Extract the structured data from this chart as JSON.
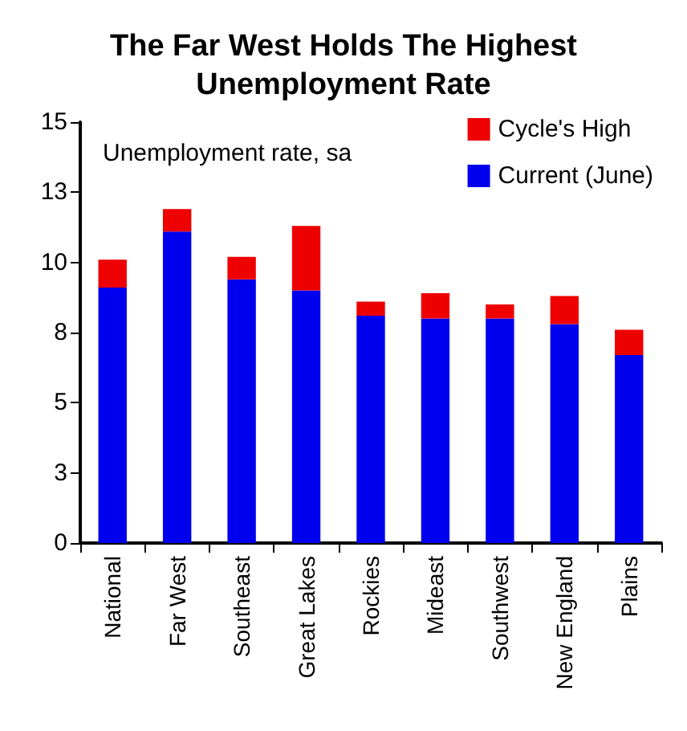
{
  "chart_data": {
    "type": "bar",
    "title": "The Far West Holds The Highest\nUnemployment Rate",
    "annotations": [
      "Unemployment rate, sa"
    ],
    "stacked": true,
    "categories": [
      "National",
      "Far West",
      "Southeast",
      "Great Lakes",
      "Rockies",
      "Mideast",
      "Southwest",
      "New England",
      "Plains"
    ],
    "series": [
      {
        "name": "Current (June)",
        "color": "#0000ee",
        "values": [
          9.1,
          11.1,
          9.4,
          9.0,
          8.1,
          8.0,
          8.0,
          7.8,
          6.7
        ]
      },
      {
        "name": "Cycle's High",
        "color": "#ee0000",
        "values": [
          1.0,
          0.8,
          0.8,
          2.3,
          0.5,
          0.9,
          0.5,
          1.0,
          0.9
        ]
      }
    ],
    "ylim": [
      0,
      15
    ],
    "yticks": [
      0,
      {
        "value": 2.5,
        "label": "3"
      },
      5,
      {
        "value": 7.5,
        "label": "8"
      },
      10,
      {
        "value": 12.5,
        "label": "13"
      },
      15
    ],
    "grid": false,
    "legend": "top right"
  }
}
